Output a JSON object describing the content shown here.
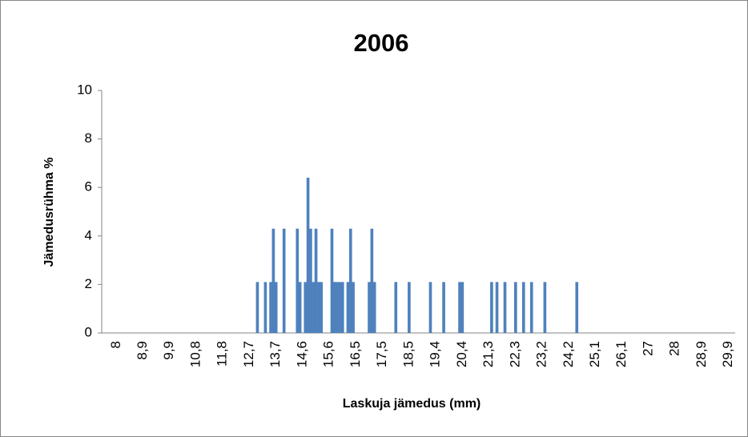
{
  "chart_data": {
    "type": "bar",
    "title": "2006",
    "x_label": "Laskuja jämedus (mm)",
    "y_label": "Jämedusrühma %",
    "categories": [
      null,
      null,
      null,
      null,
      null,
      "8",
      null,
      null,
      null,
      null,
      null,
      null,
      null,
      null,
      null,
      "8,9",
      null,
      null,
      null,
      null,
      null,
      null,
      null,
      null,
      null,
      "9,9",
      null,
      null,
      null,
      null,
      null,
      null,
      null,
      null,
      null,
      "10,8",
      null,
      null,
      null,
      null,
      null,
      null,
      null,
      null,
      null,
      "11,8",
      null,
      null,
      null,
      null,
      null,
      null,
      null,
      null,
      null,
      "12,7",
      null,
      null,
      null,
      null,
      null,
      null,
      null,
      null,
      null,
      "13,7",
      null,
      null,
      null,
      null,
      null,
      null,
      null,
      null,
      null,
      "14,6",
      null,
      null,
      null,
      null,
      null,
      null,
      null,
      null,
      null,
      "15,6",
      null,
      null,
      null,
      null,
      null,
      null,
      null,
      null,
      null,
      "16,5",
      null,
      null,
      null,
      null,
      null,
      null,
      null,
      null,
      null,
      "17,5",
      null,
      null,
      null,
      null,
      null,
      null,
      null,
      null,
      null,
      "18,5",
      null,
      null,
      null,
      null,
      null,
      null,
      null,
      null,
      null,
      "19,4",
      null,
      null,
      null,
      null,
      null,
      null,
      null,
      null,
      null,
      "20,4",
      null,
      null,
      null,
      null,
      null,
      null,
      null,
      null,
      null,
      "21,3",
      null,
      null,
      null,
      null,
      null,
      null,
      null,
      null,
      null,
      "22,3",
      null,
      null,
      null,
      null,
      null,
      null,
      null,
      null,
      null,
      "23,2",
      null,
      null,
      null,
      null,
      null,
      null,
      null,
      null,
      null,
      "24,2",
      null,
      null,
      null,
      null,
      null,
      null,
      null,
      null,
      null,
      "25,1",
      null,
      null,
      null,
      null,
      null,
      null,
      null,
      null,
      null,
      "26,1",
      null,
      null,
      null,
      null,
      null,
      null,
      null,
      null,
      null,
      "27",
      null,
      null,
      null,
      null,
      null,
      null,
      null,
      null,
      null,
      "28",
      null,
      null,
      null,
      null,
      null,
      null,
      null,
      null,
      null,
      "28,9",
      null,
      null,
      null,
      null,
      null,
      null,
      null,
      null,
      null,
      "29,9",
      null,
      null
    ],
    "values": [
      0,
      0,
      0,
      0,
      0,
      0,
      0,
      0,
      0,
      0,
      0,
      0,
      0,
      0,
      0,
      0,
      0,
      0,
      0,
      0,
      0,
      0,
      0,
      0,
      0,
      0,
      0,
      0,
      0,
      0,
      0,
      0,
      0,
      0,
      0,
      0,
      0,
      0,
      0,
      0,
      0,
      0,
      0,
      0,
      0,
      0,
      0,
      0,
      0,
      0,
      0,
      0,
      0,
      0,
      0,
      0,
      0,
      0,
      2.1,
      0,
      0,
      2.1,
      0,
      2.1,
      4.3,
      2.1,
      0,
      0,
      4.3,
      0,
      0,
      0,
      0,
      4.3,
      2.1,
      0,
      2.1,
      6.4,
      4.3,
      2.1,
      4.3,
      2.1,
      2.1,
      0,
      0,
      0,
      4.3,
      2.1,
      2.1,
      2.1,
      2.1,
      0,
      2.1,
      4.3,
      2.1,
      0,
      0,
      0,
      0,
      0,
      2.1,
      4.3,
      2.1,
      0,
      0,
      0,
      0,
      0,
      0,
      0,
      2.1,
      0,
      0,
      0,
      0,
      2.1,
      0,
      0,
      0,
      0,
      0,
      0,
      0,
      2.1,
      0,
      0,
      0,
      0,
      2.1,
      0,
      0,
      0,
      0,
      0,
      2.1,
      2.1,
      0,
      0,
      0,
      0,
      0,
      0,
      0,
      0,
      0,
      0,
      2.1,
      0,
      2.1,
      0,
      0,
      2.1,
      0,
      0,
      0,
      2.1,
      0,
      0,
      2.1,
      0,
      0,
      2.1,
      0,
      0,
      0,
      0,
      2.1,
      0,
      0,
      0,
      0,
      0,
      0,
      0,
      0,
      0,
      0,
      0,
      2.1,
      0,
      0,
      0,
      0,
      0,
      0,
      0,
      0,
      0,
      0,
      0,
      0,
      0,
      0,
      0,
      0,
      0,
      0,
      0,
      0,
      0,
      0,
      0,
      0,
      0,
      0,
      0,
      0,
      0,
      0,
      0,
      0,
      0,
      0,
      0,
      0,
      0,
      0,
      0,
      0,
      0,
      0,
      0,
      0,
      0,
      0,
      0,
      0,
      0,
      0,
      0,
      0,
      0,
      0,
      0,
      0,
      0,
      0,
      0
    ],
    "color": "#4f81bd",
    "ylim": [
      0,
      10
    ],
    "yticks": [
      0,
      2,
      4,
      6,
      8,
      10
    ],
    "grid": false
  }
}
